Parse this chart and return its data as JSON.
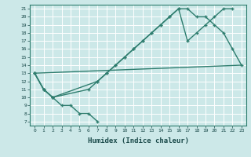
{
  "xlabel": "Humidex (Indice chaleur)",
  "bg_color": "#cce8e8",
  "grid_color": "#ffffff",
  "line_color": "#2e7d6e",
  "xlim": [
    -0.5,
    23.5
  ],
  "ylim": [
    6.5,
    21.5
  ],
  "xticks": [
    0,
    1,
    2,
    3,
    4,
    5,
    6,
    7,
    8,
    9,
    10,
    11,
    12,
    13,
    14,
    15,
    16,
    17,
    18,
    19,
    20,
    21,
    22,
    23
  ],
  "yticks": [
    7,
    8,
    9,
    10,
    11,
    12,
    13,
    14,
    15,
    16,
    17,
    18,
    19,
    20,
    21
  ],
  "line1": {
    "x": [
      0,
      1,
      2,
      3,
      4,
      5,
      6,
      7
    ],
    "y": [
      13,
      11,
      10,
      9,
      9,
      8,
      8,
      7
    ]
  },
  "line2": {
    "x": [
      0,
      1,
      2,
      6,
      7,
      8,
      9,
      10,
      11,
      12,
      13,
      14,
      15,
      16,
      17,
      18,
      19,
      20,
      21,
      22,
      23
    ],
    "y": [
      13,
      11,
      10,
      11,
      12,
      13,
      14,
      15,
      16,
      17,
      18,
      19,
      20,
      21,
      21,
      20,
      20,
      19,
      18,
      16,
      14
    ]
  },
  "line3": {
    "x": [
      0,
      1,
      2,
      7,
      8,
      9,
      10,
      11,
      12,
      13,
      14,
      15,
      16,
      17,
      18,
      19,
      20,
      21,
      22
    ],
    "y": [
      13,
      11,
      10,
      12,
      13,
      14,
      15,
      16,
      17,
      18,
      19,
      20,
      21,
      17,
      18,
      19,
      20,
      21,
      21
    ]
  },
  "line4": {
    "x": [
      0,
      23
    ],
    "y": [
      13,
      14
    ]
  },
  "font_family": "monospace",
  "tick_fontsize": 4.5,
  "xlabel_fontsize": 6.5
}
